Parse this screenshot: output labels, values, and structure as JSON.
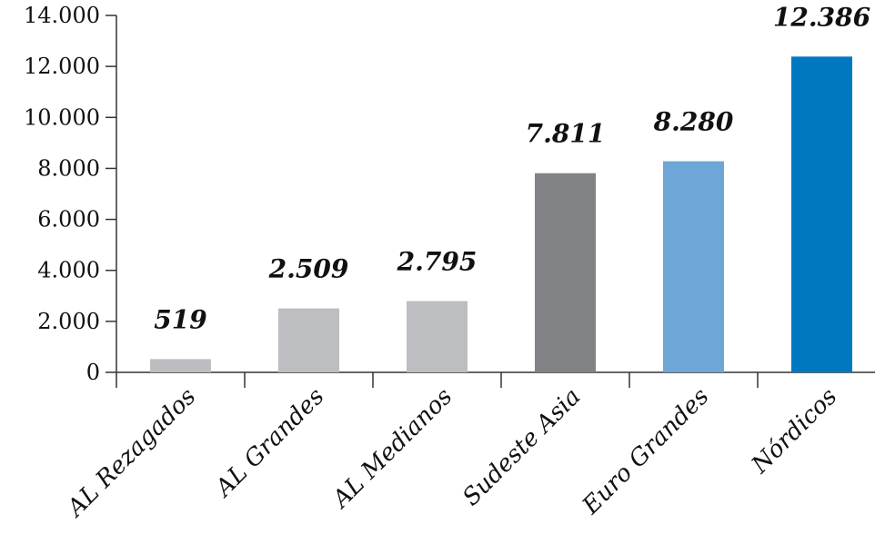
{
  "chart_data": {
    "type": "bar",
    "categories": [
      "AL Rezagados",
      "AL Grandes",
      "AL Medianos",
      "Sudeste Asia",
      "Euro Grandes",
      "Nórdicos"
    ],
    "values": [
      519,
      2509,
      2795,
      7811,
      8280,
      12386
    ],
    "value_labels": [
      "519",
      "2.509",
      "2.795",
      "7.811",
      "8.280",
      "12.386"
    ],
    "colors": [
      "#bdbec2",
      "#bdbec2",
      "#bdbec2",
      "#808285",
      "#6fa6d8",
      "#0078c1"
    ],
    "y_ticks": [
      0,
      2000,
      4000,
      6000,
      8000,
      10000,
      12000,
      14000
    ],
    "y_tick_labels": [
      "0",
      "2.000",
      "4.000",
      "6.000",
      "8.000",
      "10.000",
      "12.000",
      "14.000"
    ],
    "ylim": [
      0,
      14000
    ],
    "title": "",
    "xlabel": "",
    "ylabel": "",
    "grid": false,
    "legend": "none"
  }
}
